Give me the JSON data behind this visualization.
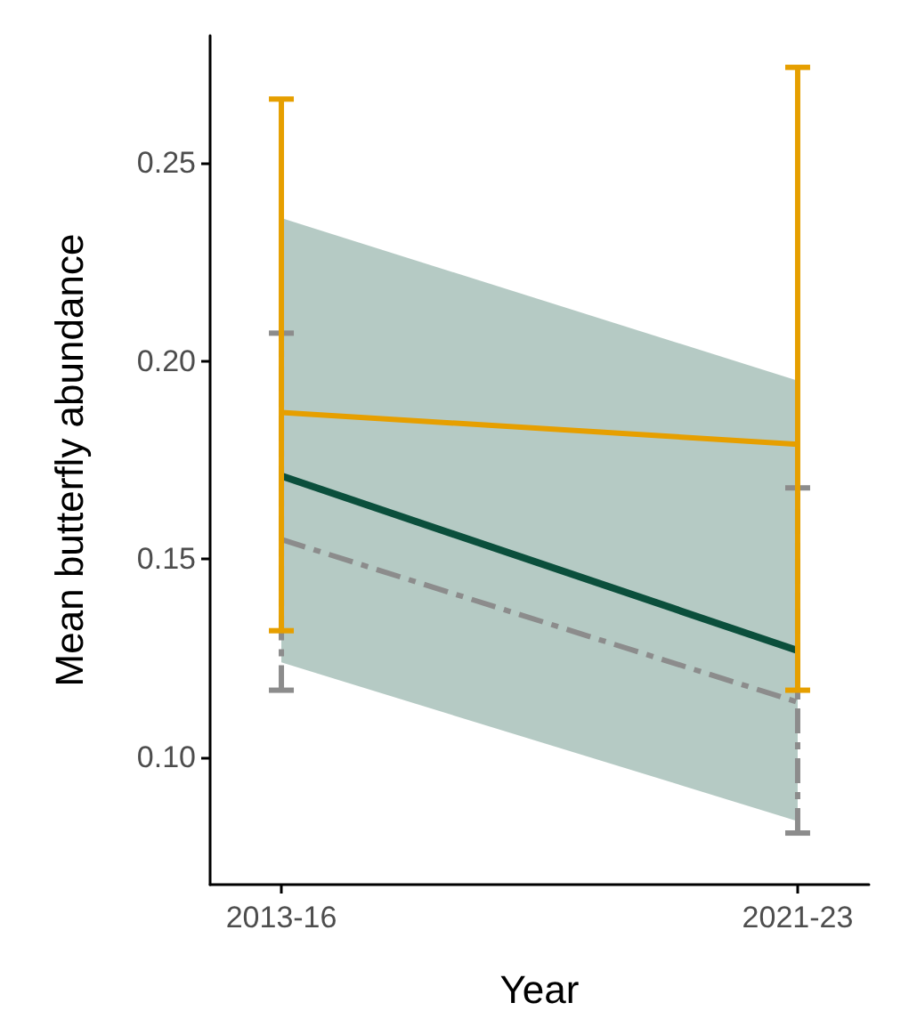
{
  "chart_data": {
    "type": "line",
    "xlabel": "Year",
    "ylabel": "Mean butterfly abundance",
    "categories": [
      "2013-16",
      "2021-23"
    ],
    "ylim": [
      0.068,
      0.282
    ],
    "yticks": [
      {
        "value": 0.1,
        "label": "0.10"
      },
      {
        "value": 0.15,
        "label": "0.15"
      },
      {
        "value": 0.2,
        "label": "0.20"
      },
      {
        "value": 0.25,
        "label": "0.25"
      }
    ],
    "grid": false,
    "marker": "none",
    "series": [
      {
        "color": "#8c8c8c",
        "values": [
          0.155,
          0.114
        ],
        "errors": [
          [
            0.117,
            0.207
          ],
          [
            0.081,
            0.168
          ]
        ],
        "line_style": "dashed"
      },
      {
        "color": "#0b4f3c",
        "values": [
          0.171,
          0.127
        ],
        "lower": [
          0.124,
          0.084
        ],
        "upper": [
          0.236,
          0.195
        ],
        "line_style": "solid"
      },
      {
        "color": "#e69f00",
        "values": [
          0.187,
          0.179
        ],
        "errors": [
          [
            0.132,
            0.266
          ],
          [
            0.117,
            0.274
          ]
        ],
        "line_style": "solid"
      }
    ]
  }
}
